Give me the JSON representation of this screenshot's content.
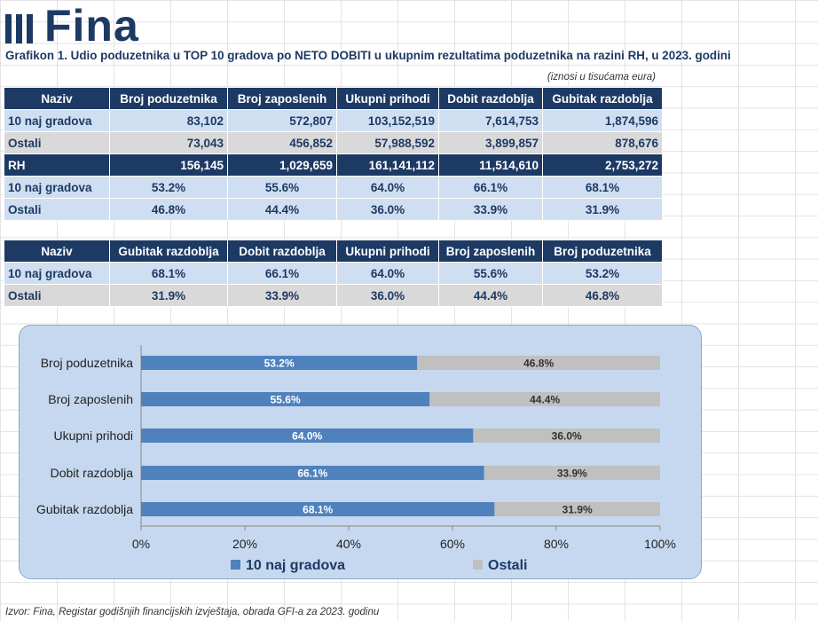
{
  "logo": {
    "text": "Fina"
  },
  "title": "Grafikon 1. Udio poduzetnika u TOP 10 gradova po NETO DOBITI u ukupnim rezultatima poduzetnika na razini RH, u 2023. godini",
  "units_note": "(iznosi u tisućama eura)",
  "table1": {
    "headers": [
      "Naziv",
      "Broj poduzetnika",
      "Broj zaposlenih",
      "Ukupni prihodi",
      "Dobit razdoblja",
      "Gubitak razdoblja"
    ],
    "rows": [
      {
        "label": "10 naj gradova",
        "values": [
          "83,102",
          "572,807",
          "103,152,519",
          "7,614,753",
          "1,874,596"
        ]
      },
      {
        "label": "Ostali",
        "values": [
          "73,043",
          "456,852",
          "57,988,592",
          "3,899,857",
          "878,676"
        ]
      },
      {
        "label": "RH",
        "values": [
          "156,145",
          "1,029,659",
          "161,141,112",
          "11,514,610",
          "2,753,272"
        ]
      },
      {
        "label": "10 naj gradova",
        "values": [
          "53.2%",
          "55.6%",
          "64.0%",
          "66.1%",
          "68.1%"
        ]
      },
      {
        "label": "Ostali",
        "values": [
          "46.8%",
          "44.4%",
          "36.0%",
          "33.9%",
          "31.9%"
        ]
      }
    ]
  },
  "table2": {
    "headers": [
      "Naziv",
      "Gubitak razdoblja",
      "Dobit razdoblja",
      "Ukupni prihodi",
      "Broj zaposlenih",
      "Broj poduzetnika"
    ],
    "rows": [
      {
        "label": "10 naj gradova",
        "values": [
          "68.1%",
          "66.1%",
          "64.0%",
          "55.6%",
          "53.2%"
        ]
      },
      {
        "label": "Ostali",
        "values": [
          "31.9%",
          "33.9%",
          "36.0%",
          "44.4%",
          "46.8%"
        ]
      }
    ]
  },
  "chart_data": {
    "type": "bar",
    "orientation": "horizontal",
    "stacked": true,
    "categories": [
      "Broj poduzetnika",
      "Broj zaposlenih",
      "Ukupni prihodi",
      "Dobit razdoblja",
      "Gubitak razdoblja"
    ],
    "series": [
      {
        "name": "10 naj gradova",
        "values": [
          53.2,
          55.6,
          64.0,
          66.1,
          68.1
        ],
        "labels": [
          "53.2%",
          "55.6%",
          "64.0%",
          "66.1%",
          "68.1%"
        ],
        "color": "#4f81bd"
      },
      {
        "name": "Ostali",
        "values": [
          46.8,
          44.4,
          36.0,
          33.9,
          31.9
        ],
        "labels": [
          "46.8%",
          "44.4%",
          "36.0%",
          "33.9%",
          "31.9%"
        ],
        "color": "#c0c0c0"
      }
    ],
    "xlim": [
      0,
      100
    ],
    "xticks": [
      "0%",
      "20%",
      "40%",
      "60%",
      "80%",
      "100%"
    ],
    "legend": "bottom",
    "grid": false
  },
  "source": "Izvor: Fina, Registar godišnjih financijskih izvještaja, obrada GFI-a za 2023. godinu"
}
